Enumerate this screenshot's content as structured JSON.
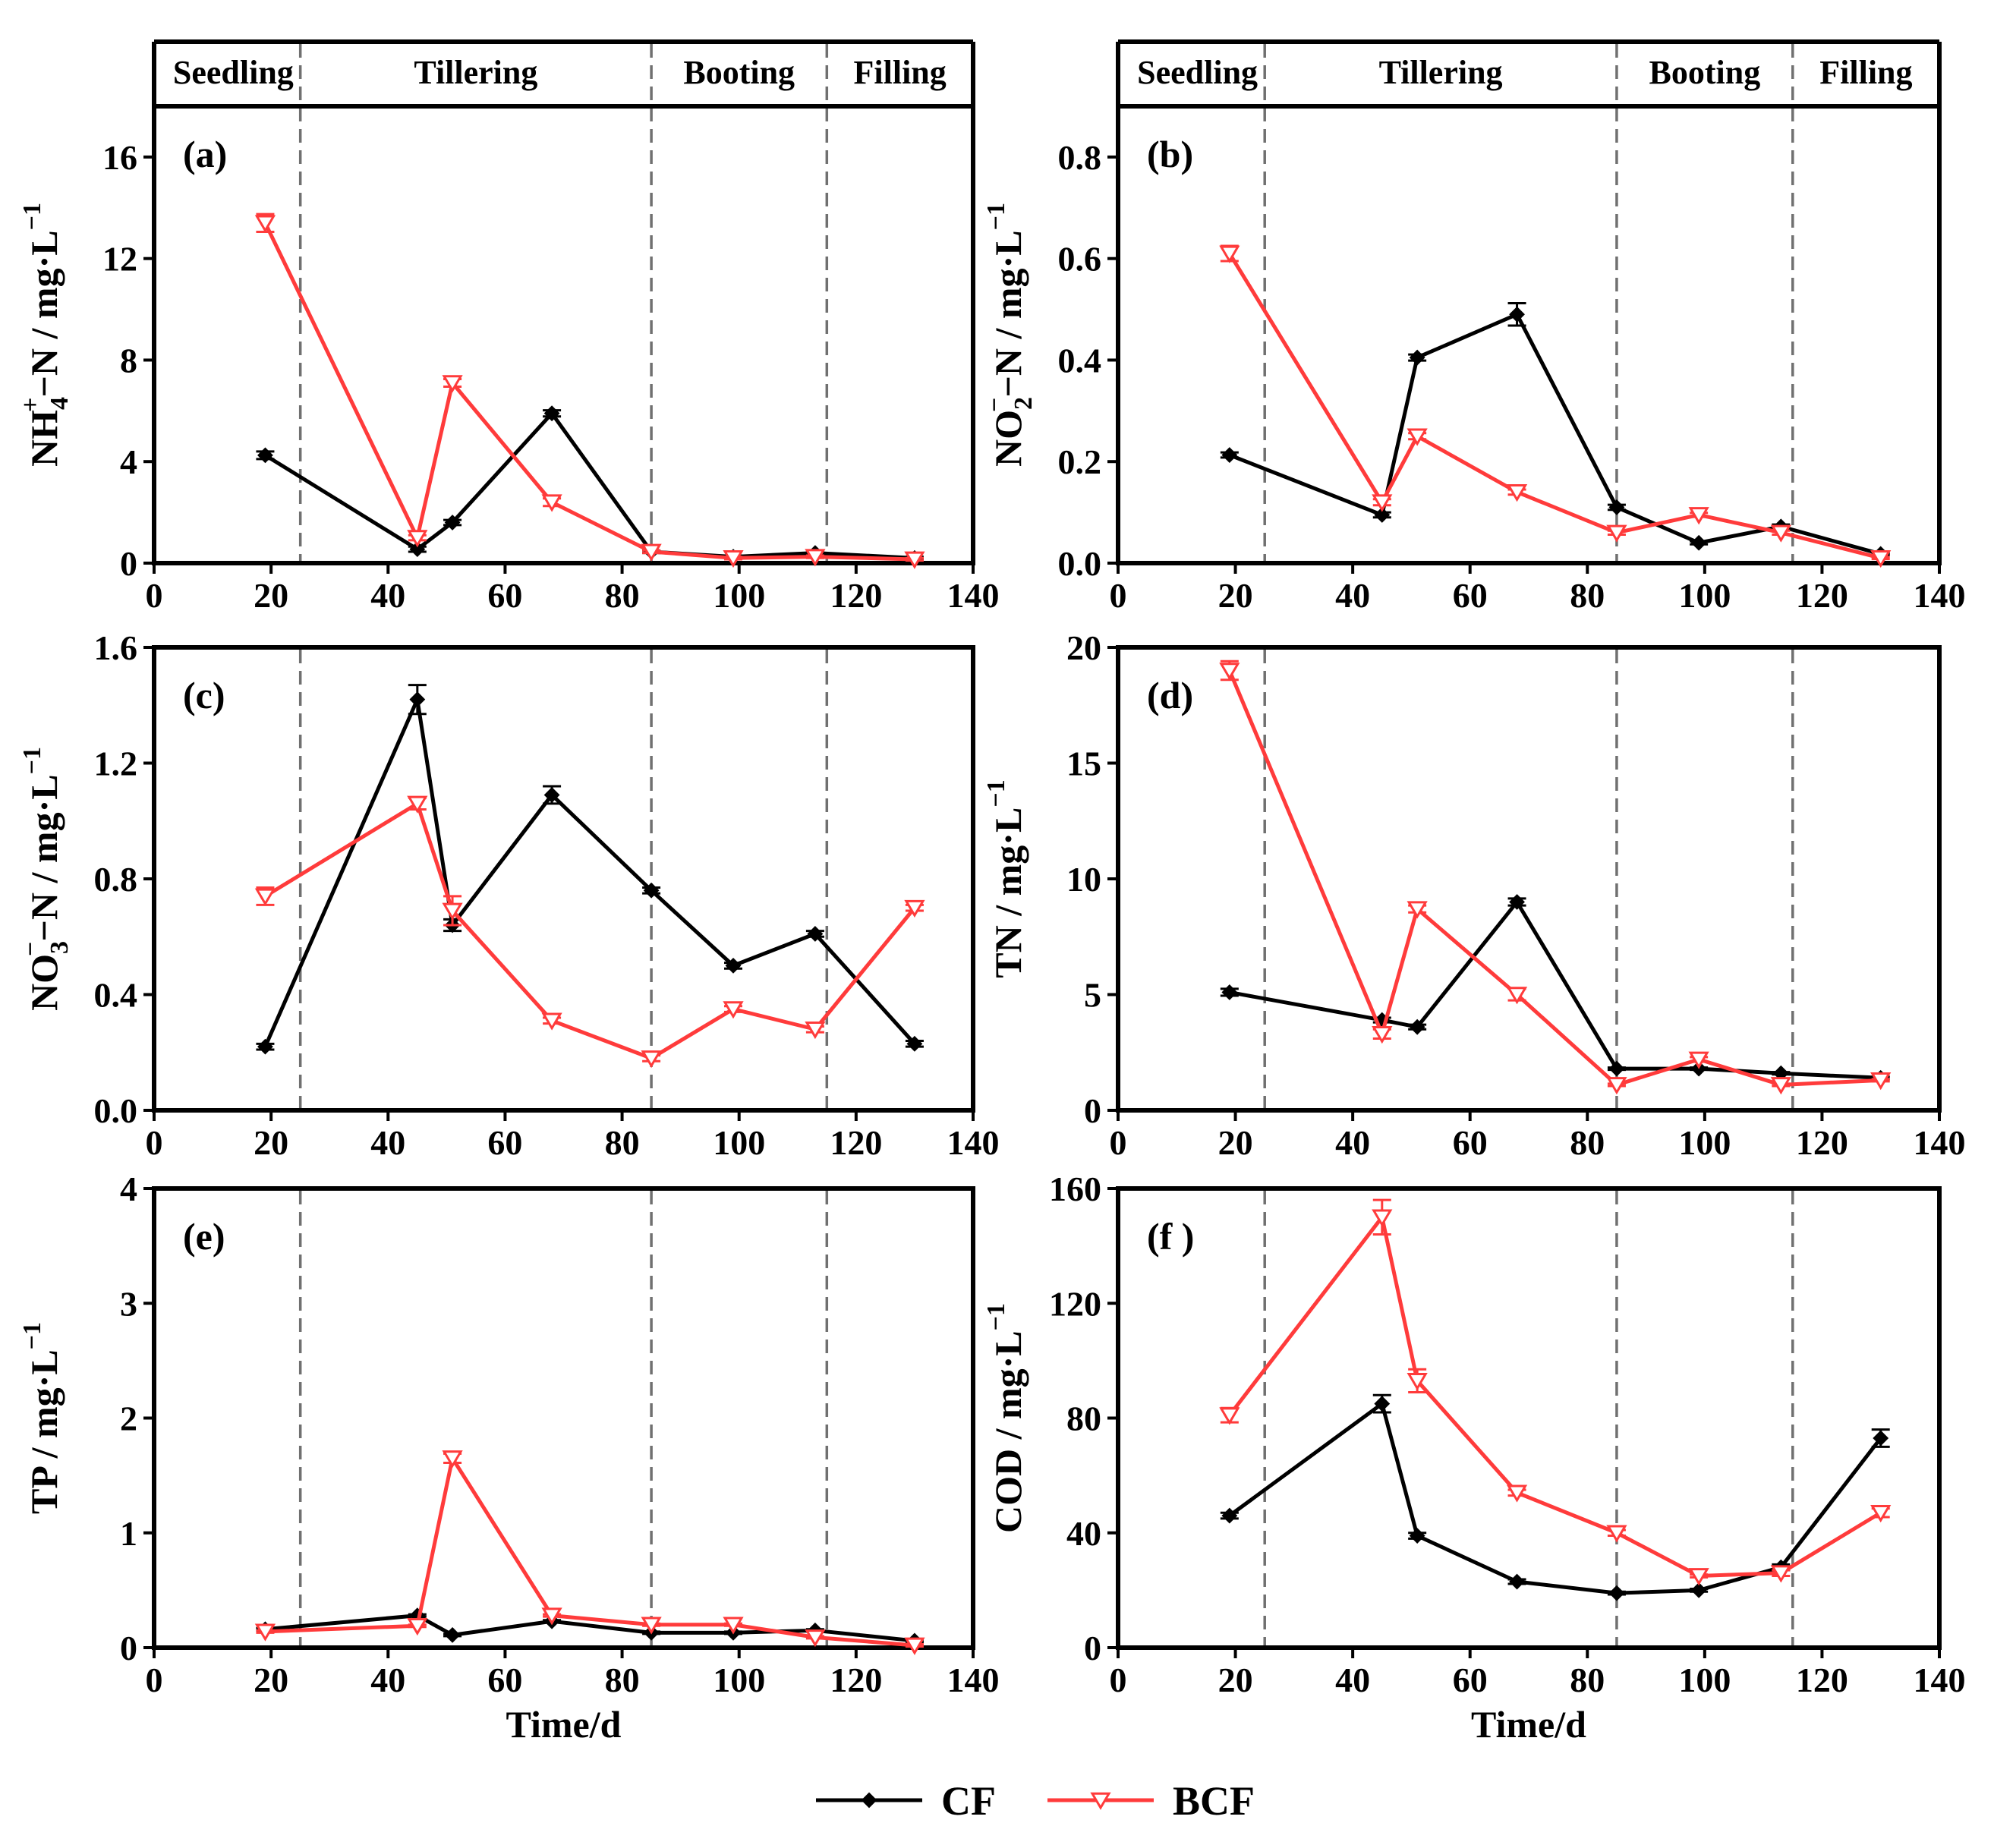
{
  "legend": {
    "entries": [
      {
        "name": "CF",
        "color": "#000000",
        "marker": "diamond"
      },
      {
        "name": "BCF",
        "color": "#ff3b3b",
        "marker": "triangle-down"
      }
    ]
  },
  "colors": {
    "cf": "#000000",
    "bcf": "#ff3b3b",
    "divider": "#707070"
  },
  "stages": {
    "names": [
      "Seedling",
      "Tillering",
      "Booting",
      "Filling"
    ],
    "boundaries": [
      25,
      85,
      115
    ]
  },
  "chart_data": [
    {
      "type": "line",
      "panel": "(a)",
      "ylabel": "NH4+−N / mg·L−1",
      "ylabel_parts": {
        "base": "NH",
        "sub": "4",
        "sup": "+",
        "rest": "−N / mg·L",
        "unit_sup": "−1"
      },
      "xlabel": "",
      "xlim": [
        0,
        140
      ],
      "ylim": [
        0,
        18
      ],
      "xticks": [
        0,
        20,
        40,
        60,
        80,
        100,
        120,
        140
      ],
      "yticks": [
        0,
        4,
        8,
        12,
        16
      ],
      "show_stage_band": true,
      "series": [
        {
          "name": "CF",
          "x": [
            19,
            45,
            51,
            68,
            85,
            99,
            113,
            130
          ],
          "y": [
            4.25,
            0.55,
            1.6,
            5.9,
            0.45,
            0.25,
            0.4,
            0.2
          ],
          "err": [
            0.15,
            0.1,
            0.1,
            0.12,
            0.05,
            0.05,
            0.05,
            0.05
          ]
        },
        {
          "name": "BCF",
          "x": [
            19,
            45,
            51,
            68,
            85,
            99,
            113,
            130
          ],
          "y": [
            13.4,
            1.0,
            7.1,
            2.4,
            0.45,
            0.2,
            0.25,
            0.15
          ],
          "err": [
            0.35,
            0.1,
            0.15,
            0.15,
            0.05,
            0.05,
            0.05,
            0.05
          ]
        }
      ]
    },
    {
      "type": "line",
      "panel": "(b)",
      "ylabel": "NO2−−N / mg·L−1",
      "ylabel_parts": {
        "base": "NO",
        "sub": "2",
        "sup": "−",
        "rest": "−N / mg·L",
        "unit_sup": "−1"
      },
      "xlabel": "",
      "xlim": [
        0,
        140
      ],
      "ylim": [
        0,
        0.9
      ],
      "xticks": [
        0,
        20,
        40,
        60,
        80,
        100,
        120,
        140
      ],
      "yticks": [
        "0.0",
        "0.2",
        "0.4",
        "0.6",
        "0.8"
      ],
      "show_stage_band": true,
      "series": [
        {
          "name": "CF",
          "x": [
            19,
            45,
            51,
            68,
            85,
            99,
            113,
            130
          ],
          "y": [
            0.213,
            0.095,
            0.405,
            0.49,
            0.11,
            0.04,
            0.072,
            0.018
          ],
          "err": [
            0.005,
            0.005,
            0.006,
            0.022,
            0.005,
            0.003,
            0.004,
            0.002
          ]
        },
        {
          "name": "BCF",
          "x": [
            19,
            45,
            51,
            68,
            85,
            99,
            113,
            130
          ],
          "y": [
            0.61,
            0.12,
            0.25,
            0.14,
            0.06,
            0.095,
            0.06,
            0.01
          ],
          "err": [
            0.015,
            0.006,
            0.006,
            0.005,
            0.004,
            0.004,
            0.004,
            0.002
          ]
        }
      ]
    },
    {
      "type": "line",
      "panel": "(c)",
      "ylabel": "NO3−−N / mg·L−1",
      "ylabel_parts": {
        "base": "NO",
        "sub": "3",
        "sup": "−",
        "rest": "−N / mg·L",
        "unit_sup": "−1"
      },
      "xlabel": "",
      "xlim": [
        0,
        140
      ],
      "ylim": [
        0,
        1.6
      ],
      "xticks": [
        0,
        20,
        40,
        60,
        80,
        100,
        120,
        140
      ],
      "yticks": [
        "0.0",
        "0.4",
        "0.8",
        "1.2",
        "1.6"
      ],
      "show_stage_band": false,
      "series": [
        {
          "name": "CF",
          "x": [
            19,
            45,
            51,
            68,
            85,
            99,
            113,
            130
          ],
          "y": [
            0.22,
            1.42,
            0.64,
            1.09,
            0.76,
            0.5,
            0.61,
            0.23
          ],
          "err": [
            0.01,
            0.05,
            0.02,
            0.03,
            0.01,
            0.01,
            0.01,
            0.01
          ]
        },
        {
          "name": "BCF",
          "x": [
            19,
            45,
            51,
            68,
            85,
            99,
            113,
            130
          ],
          "y": [
            0.74,
            1.06,
            0.69,
            0.31,
            0.18,
            0.35,
            0.28,
            0.7
          ],
          "err": [
            0.03,
            0.02,
            0.05,
            0.01,
            0.01,
            0.01,
            0.01,
            0.01
          ]
        }
      ]
    },
    {
      "type": "line",
      "panel": "(d)",
      "ylabel": "TN / mg·L−1",
      "ylabel_parts": {
        "base": "TN / mg·L",
        "sub": "",
        "sup": "",
        "rest": "",
        "unit_sup": "−1"
      },
      "xlabel": "",
      "xlim": [
        0,
        140
      ],
      "ylim": [
        0,
        20
      ],
      "xticks": [
        0,
        20,
        40,
        60,
        80,
        100,
        120,
        140
      ],
      "yticks": [
        0,
        5,
        10,
        15,
        20
      ],
      "show_stage_band": false,
      "series": [
        {
          "name": "CF",
          "x": [
            19,
            45,
            51,
            68,
            85,
            99,
            113,
            130
          ],
          "y": [
            5.1,
            3.9,
            3.6,
            9.0,
            1.8,
            1.8,
            1.6,
            1.4
          ],
          "err": [
            0.15,
            0.1,
            0.1,
            0.15,
            0.05,
            0.05,
            0.05,
            0.05
          ]
        },
        {
          "name": "BCF",
          "x": [
            19,
            45,
            51,
            68,
            85,
            99,
            113,
            130
          ],
          "y": [
            19.0,
            3.3,
            8.7,
            5.0,
            1.1,
            2.2,
            1.1,
            1.3
          ],
          "err": [
            0.4,
            0.2,
            0.15,
            0.25,
            0.05,
            0.1,
            0.05,
            0.05
          ]
        }
      ]
    },
    {
      "type": "line",
      "panel": "(e)",
      "ylabel": "TP / mg·L−1",
      "ylabel_parts": {
        "base": "TP / mg·L",
        "sub": "",
        "sup": "",
        "rest": "",
        "unit_sup": "−1"
      },
      "xlabel": "Time/d",
      "xlim": [
        0,
        140
      ],
      "ylim": [
        0,
        4
      ],
      "xticks": [
        0,
        20,
        40,
        60,
        80,
        100,
        120,
        140
      ],
      "yticks": [
        0,
        1,
        2,
        3,
        4
      ],
      "show_stage_band": false,
      "series": [
        {
          "name": "CF",
          "x": [
            19,
            45,
            51,
            68,
            85,
            99,
            113,
            130
          ],
          "y": [
            0.16,
            0.28,
            0.11,
            0.23,
            0.13,
            0.13,
            0.15,
            0.06
          ],
          "err": [
            0.01,
            0.01,
            0.01,
            0.01,
            0.01,
            0.01,
            0.01,
            0.01
          ]
        },
        {
          "name": "BCF",
          "x": [
            19,
            45,
            51,
            68,
            85,
            99,
            113,
            130
          ],
          "y": [
            0.14,
            0.19,
            1.65,
            0.28,
            0.2,
            0.2,
            0.09,
            0.02
          ],
          "err": [
            0.01,
            0.01,
            0.04,
            0.01,
            0.01,
            0.01,
            0.01,
            0.01
          ]
        }
      ]
    },
    {
      "type": "line",
      "panel": "(f )",
      "ylabel": "COD / mg·L−1",
      "ylabel_parts": {
        "base": "COD / mg·L",
        "sub": "",
        "sup": "",
        "rest": "",
        "unit_sup": "−1"
      },
      "xlabel": "Time/d",
      "xlim": [
        0,
        140
      ],
      "ylim": [
        0,
        160
      ],
      "xticks": [
        0,
        20,
        40,
        60,
        80,
        100,
        120,
        140
      ],
      "yticks": [
        0,
        40,
        80,
        120,
        160
      ],
      "show_stage_band": false,
      "series": [
        {
          "name": "CF",
          "x": [
            19,
            45,
            51,
            68,
            85,
            99,
            113,
            130
          ],
          "y": [
            46,
            85,
            39,
            23,
            19,
            20,
            28,
            73
          ],
          "err": [
            1.0,
            3.0,
            1.0,
            0.8,
            0.5,
            0.5,
            1.0,
            3.0
          ]
        },
        {
          "name": "BCF",
          "x": [
            19,
            45,
            51,
            68,
            85,
            99,
            113,
            130
          ],
          "y": [
            81,
            150,
            93,
            54,
            40,
            25,
            26,
            47
          ],
          "err": [
            2.5,
            6.0,
            4.0,
            1.0,
            1.0,
            0.5,
            1.0,
            1.5
          ]
        }
      ]
    }
  ]
}
